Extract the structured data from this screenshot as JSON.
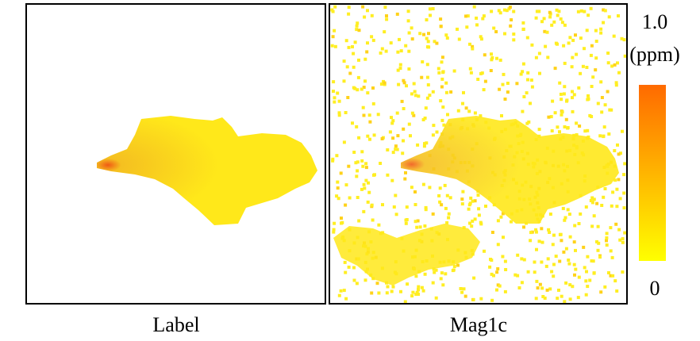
{
  "panels": [
    {
      "label": "Label"
    },
    {
      "label": "Mag1c"
    }
  ],
  "colorbar": {
    "unit": "(ppm)",
    "lim": [
      0,
      1.0
    ],
    "ticks": [
      {
        "value": 1.0,
        "label": "1.0"
      },
      0
    ],
    "colors": [
      "#ffff00",
      "#ff6a00"
    ]
  }
}
